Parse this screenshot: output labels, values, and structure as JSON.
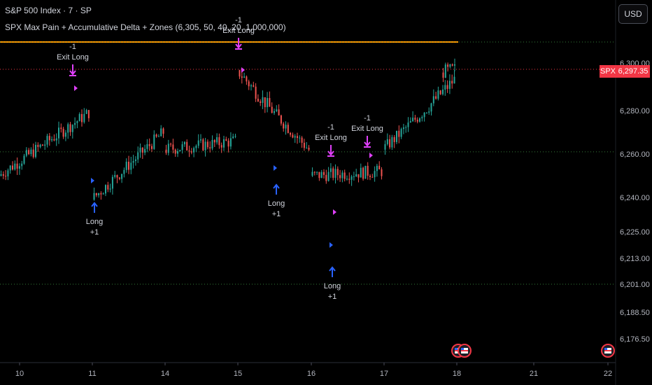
{
  "header": {
    "title": "S&P 500 Index · 7 · SP",
    "indicator": "SPX Max Pain + Accumulative Delta + Zones (6,305, 50, 40, 20, 1,000,000)"
  },
  "currency_label": "USD",
  "last_price": {
    "symbol": "SPX",
    "value": "6,297.35"
  },
  "colors": {
    "background": "#000000",
    "up": "#26a69a",
    "down": "#ef5350",
    "max_pain_line": "#ff9800",
    "signal_exit": "#e040fb",
    "signal_long": "#2962ff",
    "zone_green": "#4caf50",
    "price_line": "#f23645"
  },
  "chart_data": {
    "type": "candlestick",
    "y_axis": {
      "ticks": [
        "6,300.00",
        "6,280.00",
        "6,260.00",
        "6,240.00",
        "6,225.00",
        "6,213.00",
        "6,201.00",
        "6,188.50",
        "6,176.50"
      ],
      "tick_values": [
        6300,
        6280,
        6260,
        6240,
        6225,
        6213,
        6201,
        6188.5,
        6176.5
      ]
    },
    "x_axis": {
      "ticks": [
        "10",
        "11",
        "14",
        "15",
        "16",
        "17",
        "18",
        "21",
        "22"
      ]
    },
    "horizontal_lines": [
      {
        "name": "max pain",
        "value": 6305,
        "color": "#ff9800",
        "style": "solid"
      },
      {
        "name": "last price",
        "value": 6297.35,
        "color": "#f23645",
        "style": "dotted"
      },
      {
        "name": "zone",
        "value": 6305,
        "color": "#4caf50",
        "style": "dotted"
      },
      {
        "name": "zone",
        "value": 6261,
        "color": "#4caf50",
        "style": "dotted"
      },
      {
        "name": "zone",
        "value": 6201,
        "color": "#4caf50",
        "style": "dotted"
      }
    ],
    "session_closes": [
      {
        "session": "10",
        "open": 6250,
        "close": 6279,
        "high": 6291,
        "low": 6248
      },
      {
        "session": "11",
        "open": 6239,
        "close": 6270,
        "high": 6275,
        "low": 6233
      },
      {
        "session": "14",
        "open": 6262,
        "close": 6266,
        "high": 6274,
        "low": 6241
      },
      {
        "session": "15",
        "open": 6297,
        "close": 6262,
        "high": 6299,
        "low": 6254
      },
      {
        "session": "16",
        "open": 6250,
        "close": 6252,
        "high": 6265,
        "low": 6213
      },
      {
        "session": "17",
        "open": 6262,
        "close": 6293,
        "high": 6297,
        "low": 6258
      },
      {
        "session": "18",
        "open": 6296,
        "close": 6297.35,
        "high": 6304,
        "low": 6292
      }
    ],
    "signals": [
      {
        "type": "exit",
        "label": "Exit Long",
        "qty": "-1",
        "price": 6298,
        "session": "10"
      },
      {
        "type": "long",
        "label": "Long",
        "qty": "+1",
        "price": 6239,
        "session": "11"
      },
      {
        "type": "exit",
        "label": "Exit Long",
        "qty": "-1",
        "price": 6305,
        "session": "15"
      },
      {
        "type": "long",
        "label": "Long",
        "qty": "+1",
        "price": 6248,
        "session": "15"
      },
      {
        "type": "exit",
        "label": "Exit Long",
        "qty": "-1",
        "price": 6264,
        "session": "16"
      },
      {
        "type": "long",
        "label": "Long",
        "qty": "+1",
        "price": 6213,
        "session": "16"
      },
      {
        "type": "exit",
        "label": "Exit Long",
        "qty": "-1",
        "price": 6265,
        "session": "16"
      }
    ]
  }
}
